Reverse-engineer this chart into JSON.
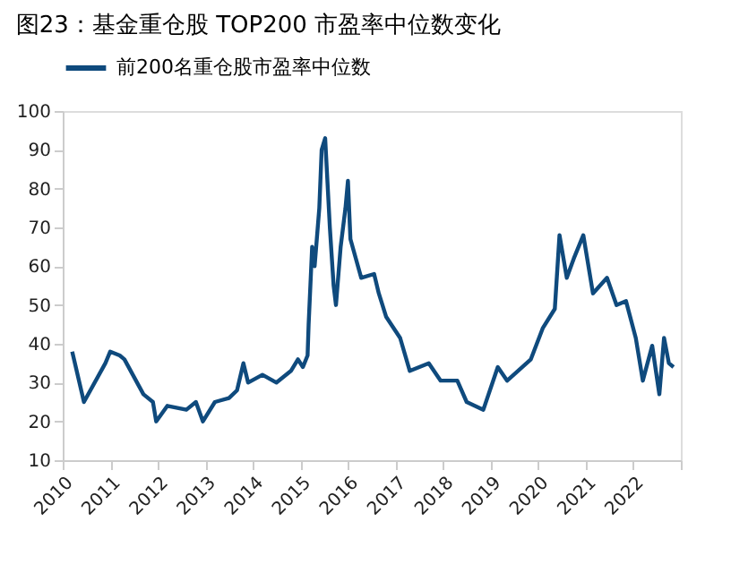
{
  "chart_data": {
    "type": "line",
    "title": "图23：基金重仓股 TOP200 市盈率中位数变化",
    "x": [
      "2010-03-15",
      "2010-06-13",
      "2010-11-25",
      "2011-01-01",
      "2011-03-15",
      "2011-04-20",
      "2011-09-13",
      "2011-11-25",
      "2011-12-20",
      "2012-03-15",
      "2012-08-08",
      "2012-10-20",
      "2012-12-13",
      "2013-03-15",
      "2013-07-01",
      "2013-09-01",
      "2013-10-20",
      "2013-11-25",
      "2014-03-15",
      "2014-07-01",
      "2014-10-20",
      "2014-12-13",
      "2015-01-20",
      "2015-02-25",
      "2015-03-05",
      "2015-04-01",
      "2015-04-20",
      "2015-05-26",
      "2015-06-13",
      "2015-07-10",
      "2015-08-15",
      "2015-09-13",
      "2015-10-01",
      "2015-11-06",
      "2015-12-13",
      "2016-01-01",
      "2016-01-20",
      "2016-04-12",
      "2016-07-20",
      "2016-08-25",
      "2016-10-20",
      "2017-02-05",
      "2017-04-20",
      "2017-09-13",
      "2017-12-13",
      "2018-04-20",
      "2018-07-01",
      "2018-11-06",
      "2019-02-25",
      "2019-05-08",
      "2019-11-06",
      "2020-02-05",
      "2020-05-08",
      "2020-06-13",
      "2020-08-08",
      "2020-10-01",
      "2020-12-13",
      "2021-02-25",
      "2021-06-13",
      "2021-08-25",
      "2021-11-06",
      "2022-01-20",
      "2022-03-15",
      "2022-05-26",
      "2022-07-20",
      "2022-08-25",
      "2022-10-01",
      "2022-11-06"
    ],
    "series": [
      {
        "name": "前200名重仓股市盈率中位数",
        "color": "#0f4a7d",
        "values": [
          38,
          25,
          35,
          38,
          37,
          36,
          27,
          25,
          20,
          24,
          23,
          25,
          20,
          25,
          26,
          28,
          35,
          30,
          32,
          30,
          33,
          36,
          34,
          37,
          45,
          65,
          60,
          75,
          90,
          93,
          70,
          55,
          50,
          65,
          75,
          82,
          67,
          57,
          58,
          53,
          47,
          41.5,
          33,
          35,
          30.5,
          30.5,
          25,
          23,
          34,
          30.5,
          36,
          44,
          49,
          68,
          57,
          62,
          68,
          53,
          57,
          50,
          51,
          41.5,
          30.5,
          39.5,
          27,
          41.5,
          35,
          34
        ]
      }
    ],
    "xlim": [
      "2010-01-01",
      "2023-01-01"
    ],
    "xticks": [
      {
        "value": "2010",
        "label": "2010"
      },
      {
        "value": "2011",
        "label": "2011"
      },
      {
        "value": "2012",
        "label": "2012"
      },
      {
        "value": "2013",
        "label": "2013"
      },
      {
        "value": "2014",
        "label": "2014"
      },
      {
        "value": "2015",
        "label": "2015"
      },
      {
        "value": "2016",
        "label": "2016"
      },
      {
        "value": "2017",
        "label": "2017"
      },
      {
        "value": "2018",
        "label": "2018"
      },
      {
        "value": "2019",
        "label": "2019"
      },
      {
        "value": "2020",
        "label": "2020"
      },
      {
        "value": "2021",
        "label": "2021"
      },
      {
        "value": "2022",
        "label": "2022"
      },
      {
        "value": "2023",
        "label": null
      }
    ],
    "ylim": [
      10,
      100
    ],
    "yticks": [
      10,
      20,
      30,
      40,
      50,
      60,
      70,
      80,
      90,
      100
    ],
    "grid": false,
    "legend": "top",
    "marker": "none",
    "line_style": "solid"
  }
}
